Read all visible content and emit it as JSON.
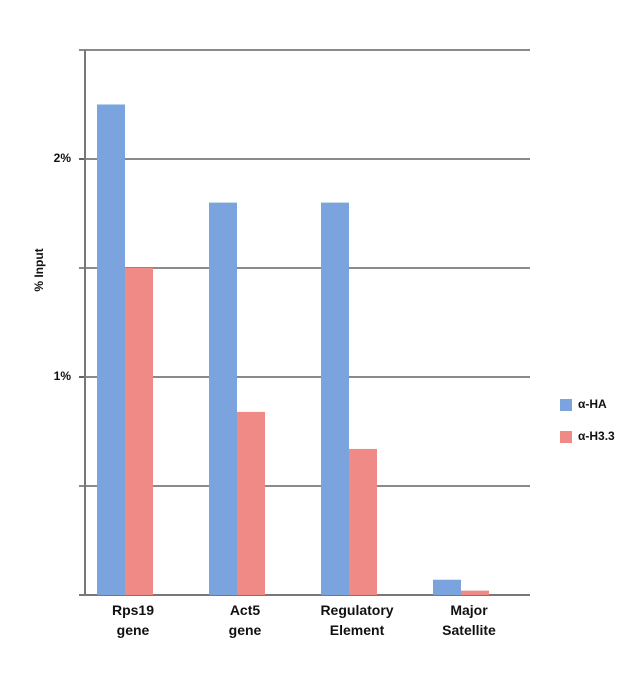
{
  "chart_data": {
    "type": "bar",
    "y_label": "% Input",
    "categories": [
      "Rps19 gene",
      "Act5 gene",
      "Regulatory Element",
      "Major Satellite"
    ],
    "series": [
      {
        "name": "α-HA",
        "color": "#7ba3dd",
        "values": [
          2.25,
          1.8,
          1.8,
          0.07
        ]
      },
      {
        "name": "α-H3.3",
        "color": "#f08a86",
        "values": [
          1.5,
          0.84,
          0.67,
          0.02
        ]
      }
    ],
    "ylim": [
      0,
      2.5
    ],
    "yticks": [
      {
        "value": 1,
        "label": "1%"
      },
      {
        "value": 2,
        "label": "2%"
      }
    ],
    "grid_values": [
      0.5,
      1,
      1.5,
      2,
      2.5
    ],
    "legend": "right"
  }
}
